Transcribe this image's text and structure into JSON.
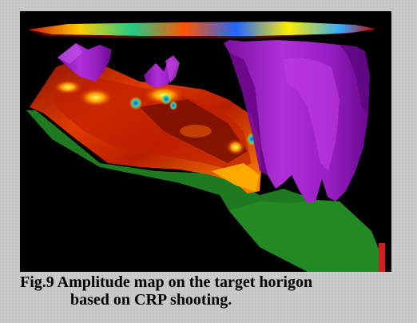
{
  "figure": {
    "caption_line1": "Fig.9 Amplitude map on the target horigon",
    "caption_line2": "based on CRP shooting."
  },
  "colors": {
    "page_background": "#c8c8c8",
    "image_background": "#000000",
    "terrain_base": "#1f7a1f",
    "amplitude_surface": "#d83000",
    "salt_body": "#a020c8"
  }
}
